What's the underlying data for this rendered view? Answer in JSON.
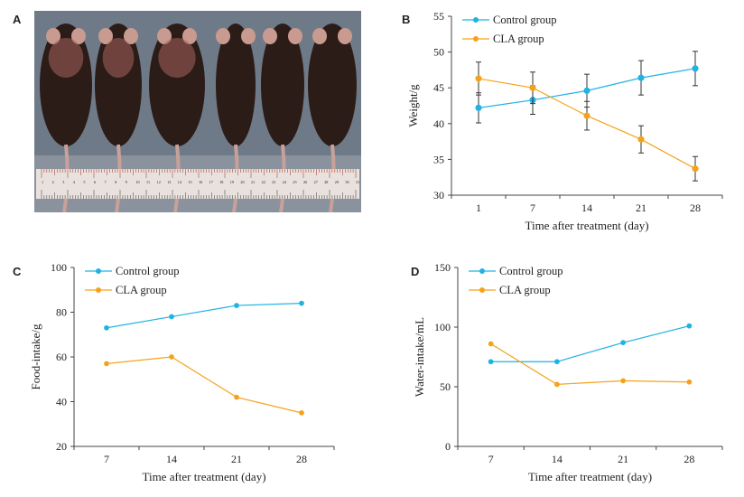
{
  "panels": {
    "a_label": "A",
    "b_label": "B",
    "c_label": "C",
    "d_label": "D"
  },
  "colors": {
    "control": "#1fb2e3",
    "cla": "#f5a21b",
    "axis": "#444444",
    "photo_bg": "#6f7a88",
    "fur": "#2b1c17",
    "ruler": "#e9e1dd"
  },
  "photo": {
    "description_icon": "mice-photo-icon",
    "ruler_numbers": [
      "1",
      "2",
      "3",
      "4",
      "5",
      "6",
      "7",
      "8",
      "9",
      "10",
      "11",
      "12",
      "13",
      "14",
      "15",
      "16",
      "17",
      "18",
      "19",
      "20",
      "21",
      "22",
      "23",
      "24",
      "25",
      "26",
      "27",
      "28",
      "29",
      "30",
      "31"
    ]
  },
  "chart_data": [
    {
      "id": "B",
      "type": "line",
      "xlabel": "Time after treatment (day)",
      "ylabel": "Weight/g",
      "categories": [
        "1",
        "7",
        "14",
        "21",
        "28"
      ],
      "ylim": [
        30,
        55
      ],
      "yticks": [
        30,
        35,
        40,
        45,
        50,
        55
      ],
      "legend": "top-left",
      "series": [
        {
          "name": "Control group",
          "color": "#1fb2e3",
          "values": [
            42.2,
            43.3,
            44.6,
            46.4,
            47.7
          ],
          "errors": [
            2.1,
            2.0,
            2.3,
            2.4,
            2.4
          ]
        },
        {
          "name": "CLA group",
          "color": "#f5a21b",
          "values": [
            46.3,
            45.0,
            41.1,
            37.8,
            33.7
          ],
          "errors": [
            2.3,
            2.2,
            2.0,
            1.9,
            1.7
          ]
        }
      ]
    },
    {
      "id": "C",
      "type": "line",
      "xlabel": "Time after treatment (day)",
      "ylabel": "Food-intake/g",
      "categories": [
        "7",
        "14",
        "21",
        "28"
      ],
      "ylim": [
        20,
        100
      ],
      "yticks": [
        20,
        40,
        60,
        80,
        100
      ],
      "legend": "top-left",
      "series": [
        {
          "name": "Control group",
          "color": "#1fb2e3",
          "values": [
            73,
            78,
            83,
            84
          ]
        },
        {
          "name": "CLA group",
          "color": "#f5a21b",
          "values": [
            57,
            60,
            42,
            35
          ]
        }
      ]
    },
    {
      "id": "D",
      "type": "line",
      "xlabel": "Time after treatment (day)",
      "ylabel": "Water-intake/mL",
      "categories": [
        "7",
        "14",
        "21",
        "28"
      ],
      "ylim": [
        0,
        150
      ],
      "yticks": [
        0,
        50,
        100,
        150
      ],
      "legend": "top-left",
      "series": [
        {
          "name": "Control group",
          "color": "#1fb2e3",
          "values": [
            71,
            71,
            87,
            101
          ]
        },
        {
          "name": "CLA group",
          "color": "#f5a21b",
          "values": [
            86,
            52,
            55,
            54
          ]
        }
      ]
    }
  ]
}
